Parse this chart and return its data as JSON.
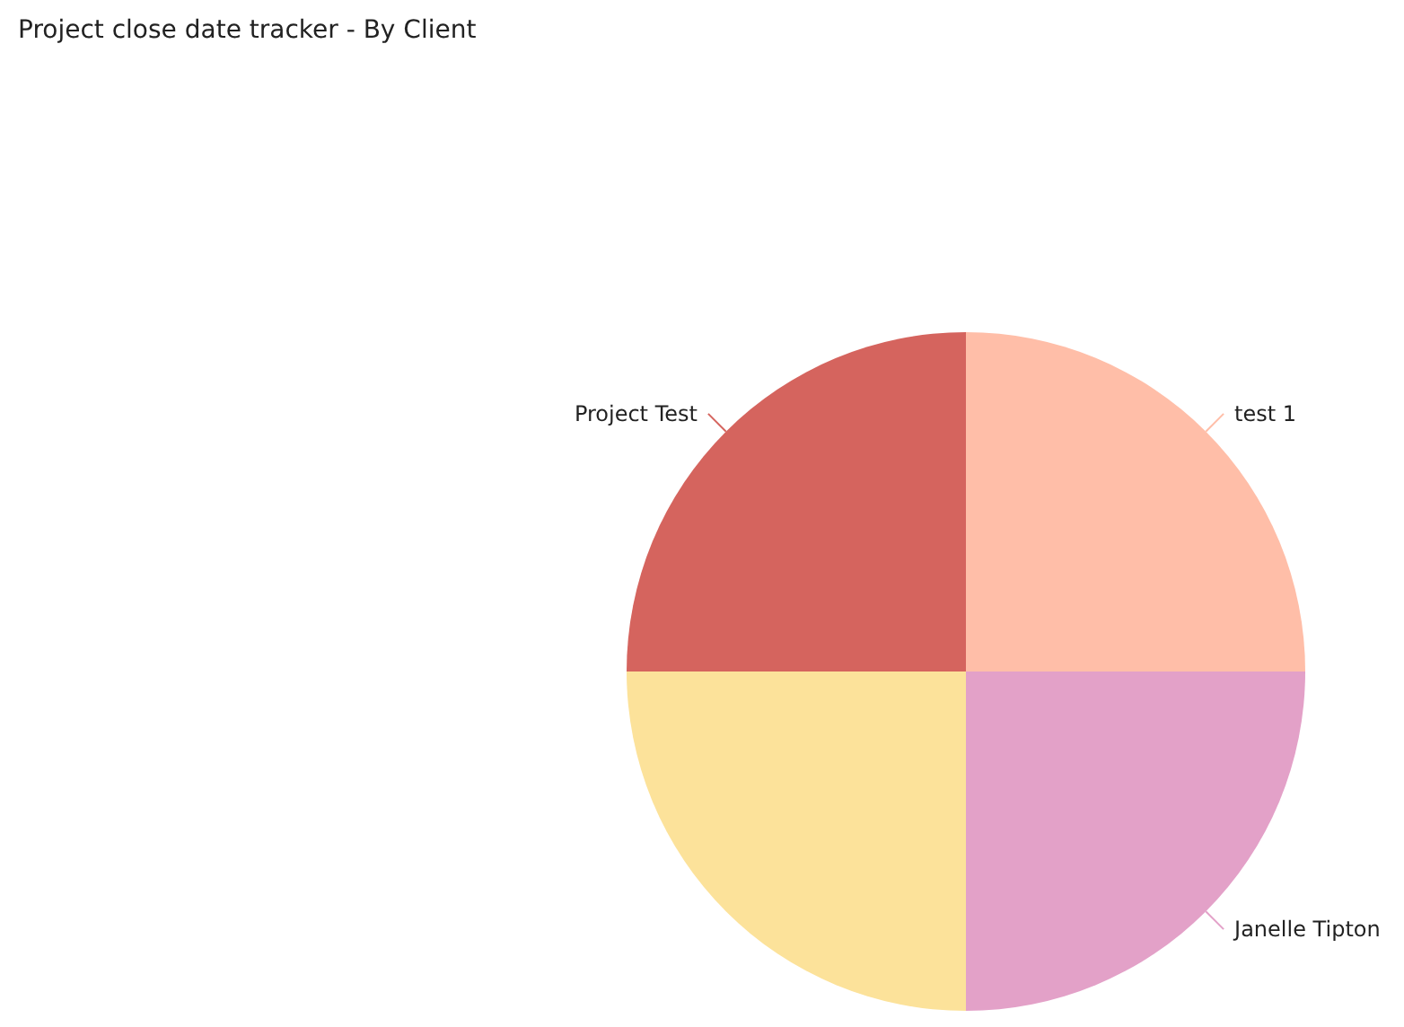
{
  "chart_data": {
    "type": "pie",
    "title": "Project close date tracker - By Client",
    "categories": [
      "test 1",
      "Janelle Tipton",
      null,
      "Project Test"
    ],
    "values": [
      25,
      25,
      25,
      25
    ],
    "colors": [
      "#ffbea8",
      "#e3a1c8",
      "#fce29a",
      "#d5645e"
    ]
  }
}
